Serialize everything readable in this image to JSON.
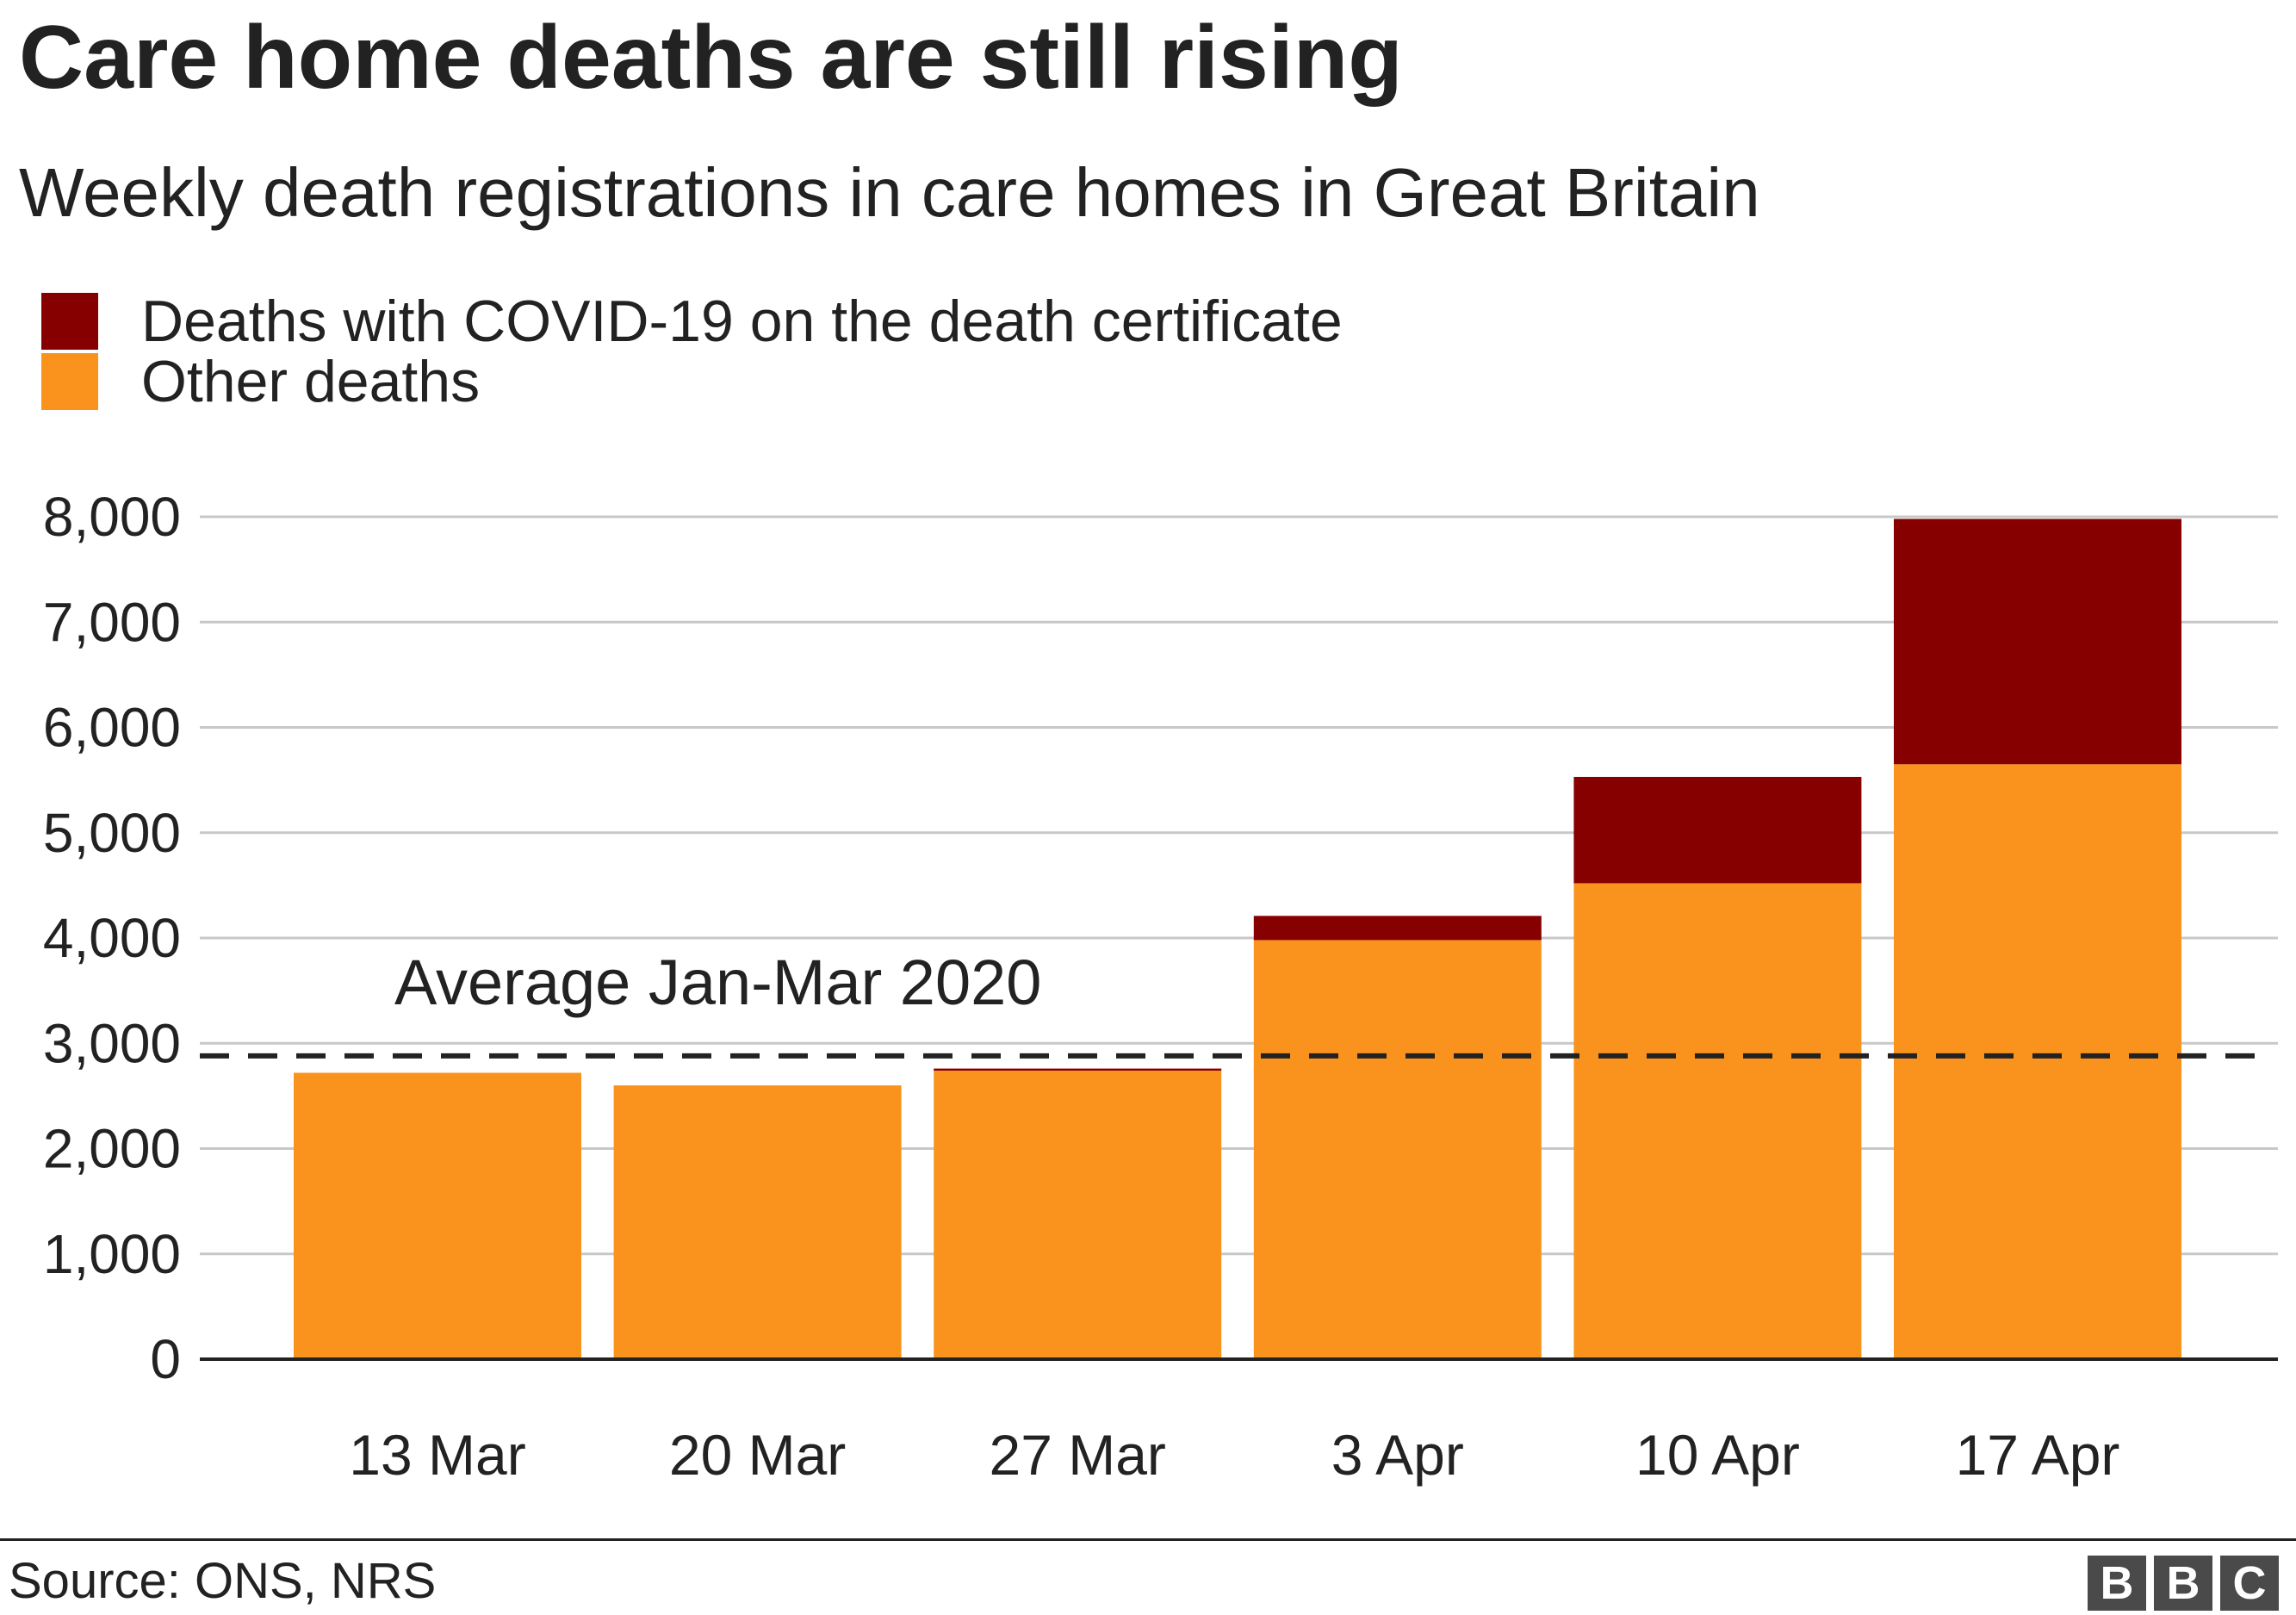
{
  "colors": {
    "covid": "#870000",
    "other": "#fa931d",
    "grid": "#c8c8c8",
    "axis": "#222222",
    "average_line": "#222222"
  },
  "chart_data": {
    "type": "bar",
    "stacked": true,
    "title": "Care home deaths are still rising",
    "subtitle": "Weekly death registrations in care homes in Great Britain",
    "categories": [
      "13 Mar",
      "20 Mar",
      "27 Mar",
      "3 Apr",
      "10 Apr",
      "17 Apr"
    ],
    "series": [
      {
        "name": "Other deaths",
        "color": "#fa931d",
        "values": [
          2720,
          2600,
          2740,
          3980,
          4520,
          5650
        ]
      },
      {
        "name": "Deaths with COVID-19 on the death certificate",
        "color": "#870000",
        "values": [
          0,
          0,
          20,
          230,
          1010,
          2330
        ]
      }
    ],
    "ylim": [
      0,
      8000
    ],
    "yticks": [
      0,
      1000,
      2000,
      3000,
      4000,
      5000,
      6000,
      7000,
      8000
    ],
    "ytick_labels": [
      "0",
      "1,000",
      "2,000",
      "3,000",
      "4,000",
      "5,000",
      "6,000",
      "7,000",
      "8,000"
    ],
    "grid": true,
    "legend_position": "top-left",
    "reference_line": {
      "label": "Average Jan-Mar 2020",
      "value": 2880,
      "style": "dashed"
    },
    "source": "Source: ONS, NRS",
    "logo": "BBC"
  }
}
